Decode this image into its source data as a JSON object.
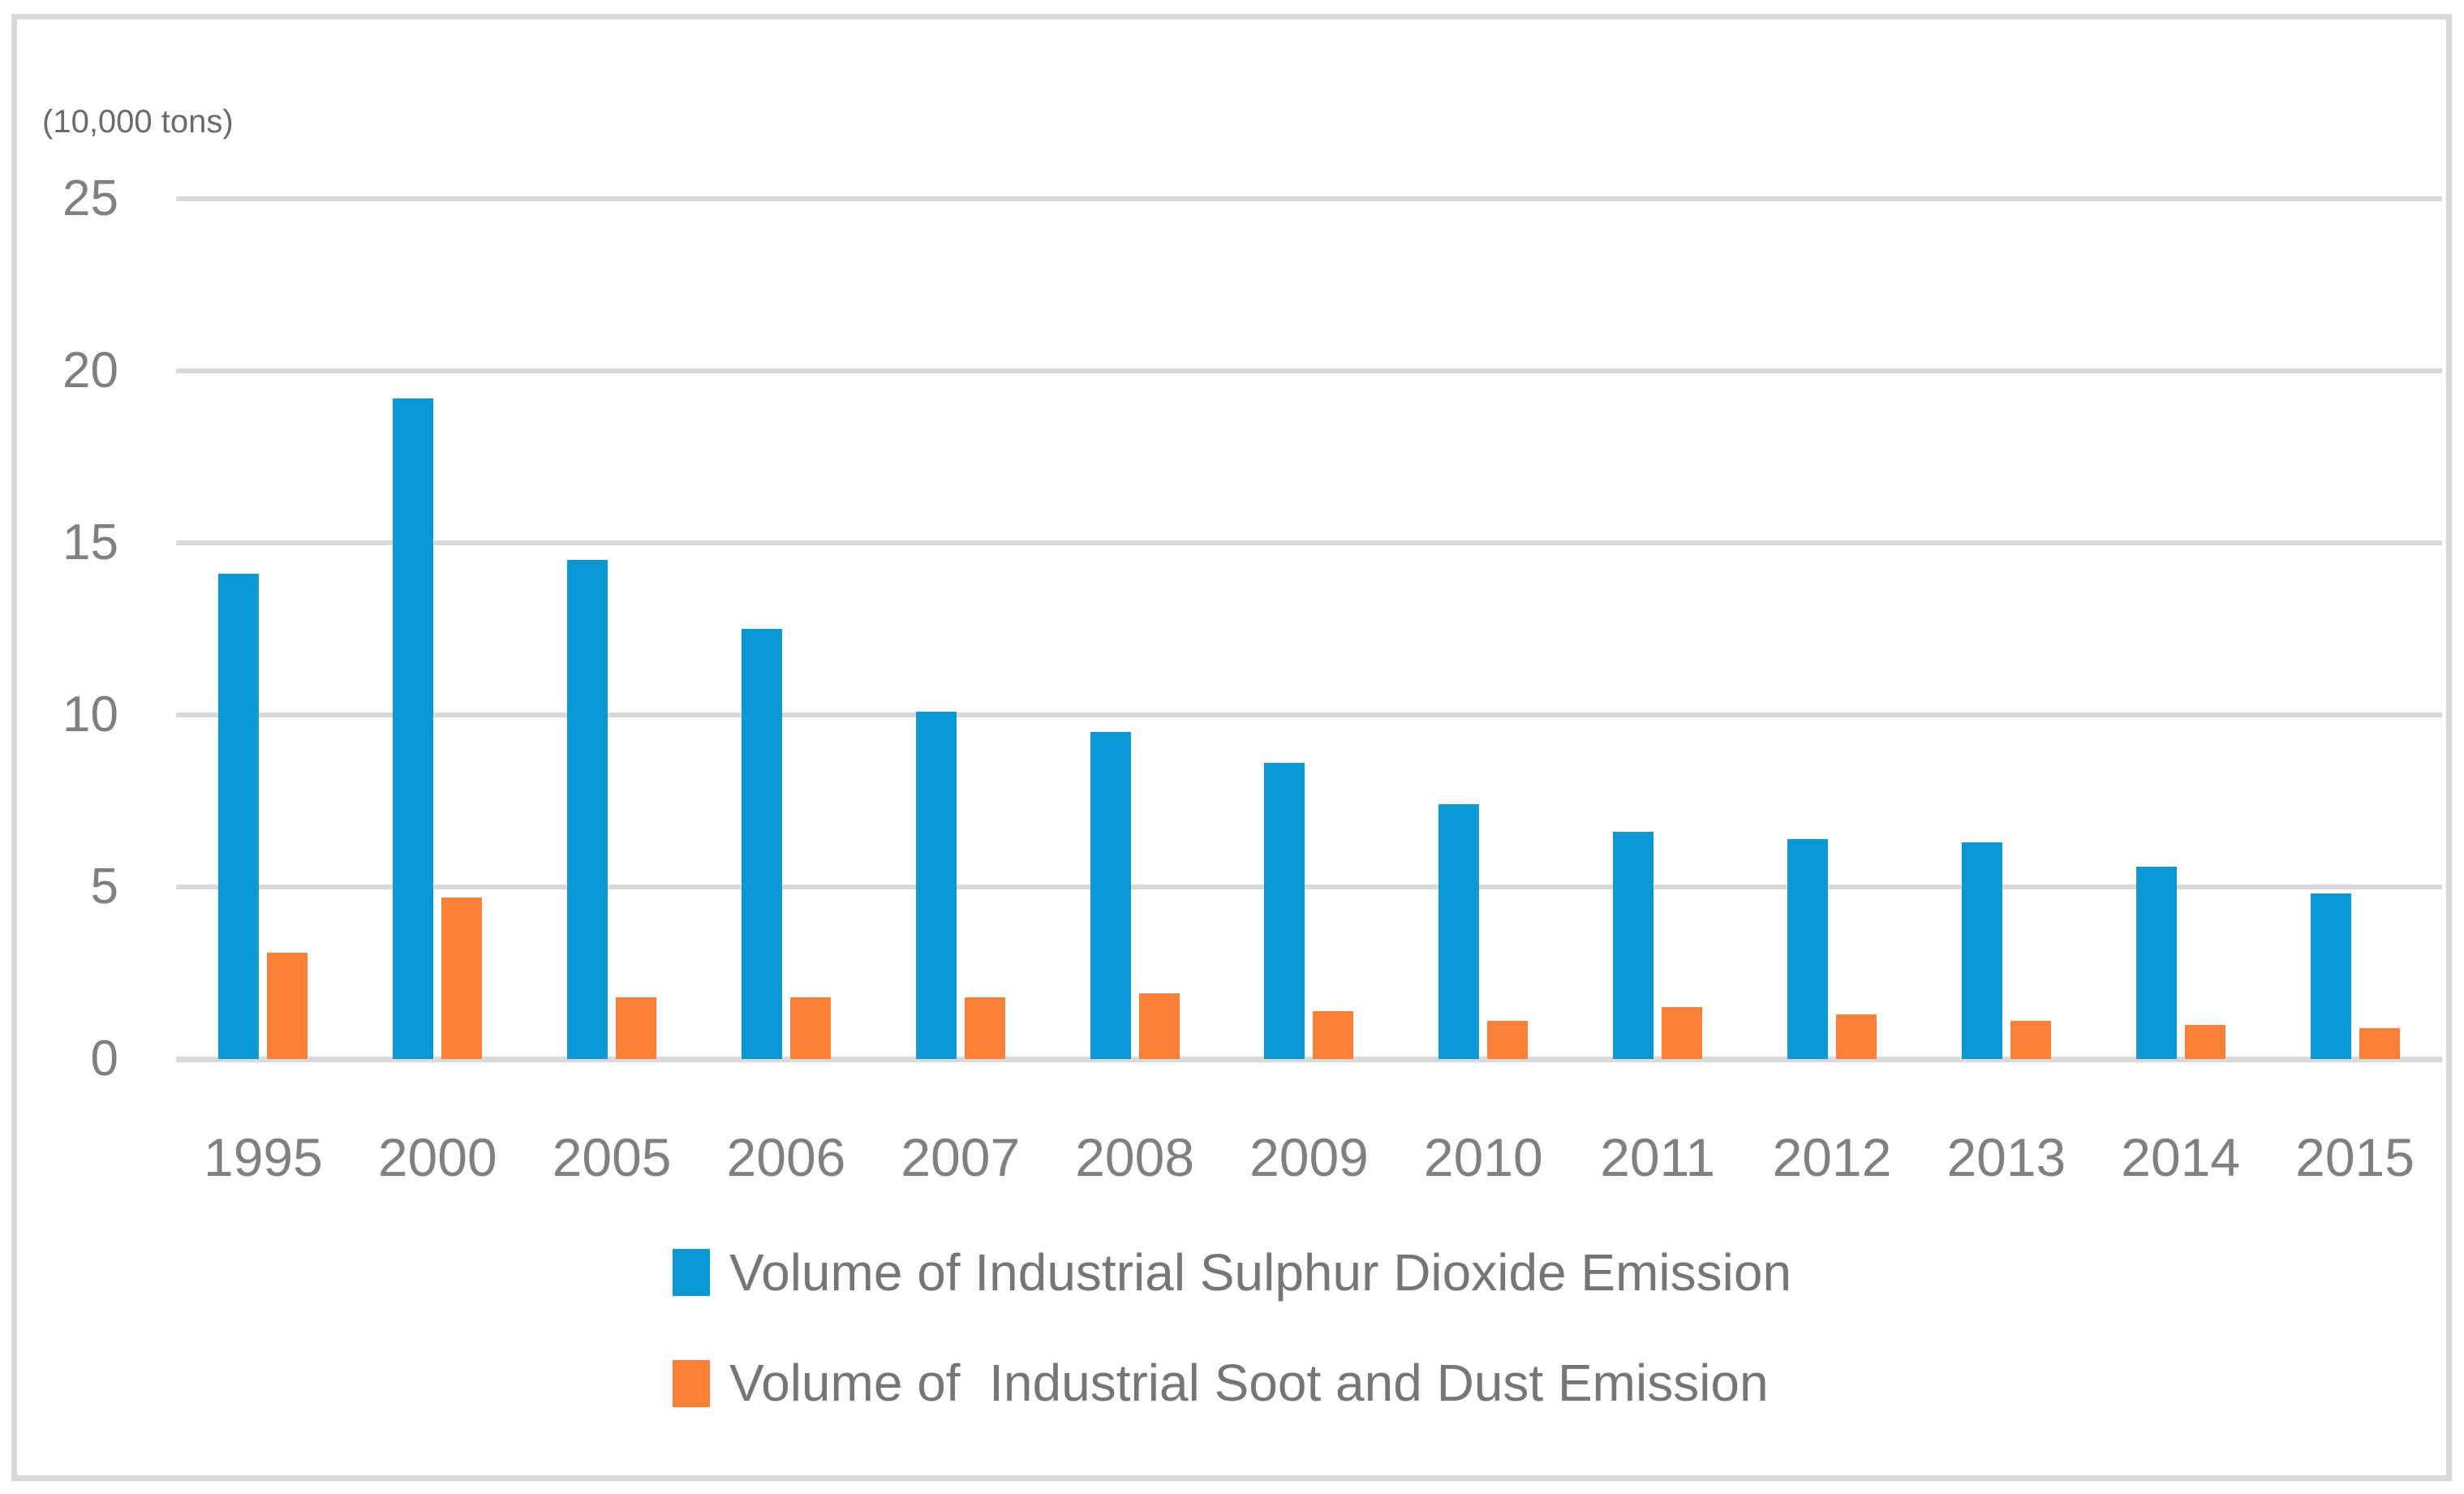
{
  "chart_data": {
    "type": "bar",
    "title": "",
    "unit_label": "(10,000 tons)",
    "categories": [
      "1995",
      "2000",
      "2005",
      "2006",
      "2007",
      "2008",
      "2009",
      "2010",
      "2011",
      "2012",
      "2013",
      "2014",
      "2015"
    ],
    "series": [
      {
        "name": "Volume of Industrial Sulphur Dioxide Emission",
        "color": "#0A99D4",
        "values": [
          14.1,
          19.2,
          14.5,
          12.5,
          10.1,
          9.5,
          8.6,
          7.4,
          6.6,
          6.4,
          6.3,
          5.6,
          4.8
        ]
      },
      {
        "name": "Volume of  Industrial Soot and Dust Emission",
        "color": "#FB8038",
        "values": [
          3.1,
          4.7,
          1.8,
          1.8,
          1.8,
          1.9,
          1.4,
          1.1,
          1.5,
          1.3,
          1.1,
          1.0,
          0.9
        ]
      }
    ],
    "xlabel": "",
    "ylabel": "",
    "ylim": [
      0,
      25
    ],
    "yticks": [
      0,
      5,
      10,
      15,
      20,
      25
    ],
    "grid": "horizontal",
    "legend_position": "bottom"
  },
  "styles": {
    "background": "#FFFFFF",
    "border_color": "#D9D9D9",
    "gridline_color": "#D9D9D9",
    "tick_label_color": "#808080",
    "legend_text_color": "#767676",
    "unit_label_color": "#6B6B6B"
  }
}
